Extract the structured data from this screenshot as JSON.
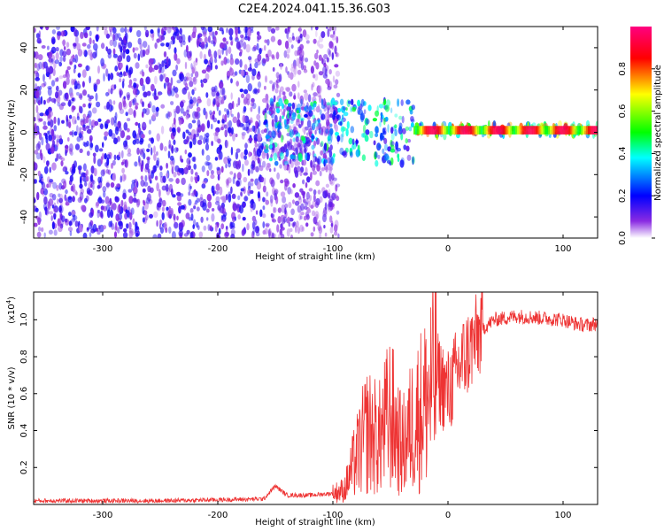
{
  "title": "C2E4.2024.041.15.36.G03",
  "chart_data": [
    {
      "type": "heatmap",
      "name": "spectrogram",
      "xlabel": "Height of straight line (km)",
      "ylabel": "Frequency (Hz)",
      "xlim": [
        -360,
        130
      ],
      "ylim": [
        -50,
        50
      ],
      "xticks": [
        -300,
        -200,
        -100,
        0,
        100
      ],
      "yticks": [
        -40,
        -20,
        0,
        20,
        40
      ],
      "xtick_labels": [
        "-300",
        "-200",
        "-100",
        "0",
        "100"
      ],
      "ytick_labels": [
        "-40",
        "-20",
        "0",
        "20",
        "40"
      ],
      "colorbar": {
        "label": "Normalized spectral amplitude",
        "range": [
          0,
          1
        ],
        "ticks": [
          0.0,
          0.2,
          0.4,
          0.6,
          0.8
        ],
        "tick_labels": [
          "0.0",
          "0.2",
          "0.4",
          "0.6",
          "0.8"
        ],
        "colors": [
          "#ffffff",
          "#8a2be2",
          "#0000ff",
          "#00ffff",
          "#00ff00",
          "#ffff00",
          "#ff0000",
          "#ff0080"
        ]
      },
      "regions": [
        {
          "x_range": [
            -360,
            -160
          ],
          "freq_range": [
            -50,
            50
          ],
          "amplitude": 0.15
        },
        {
          "x_range": [
            -160,
            -95
          ],
          "freq_range": [
            -50,
            50
          ],
          "amplitude": 0.1
        },
        {
          "x_range": [
            -160,
            -30
          ],
          "freq_range": [
            -15,
            15
          ],
          "amplitude": 0.35
        },
        {
          "x_range": [
            -30,
            130
          ],
          "freq_range": [
            -2,
            4
          ],
          "amplitude": 0.6
        }
      ]
    },
    {
      "type": "line",
      "name": "snr",
      "xlabel": "Height of straight line (km)",
      "ylabel": "SNR (10 * v/v)",
      "y_multiplier_label": "(x10",
      "y_multiplier_exp": "4",
      "xlim": [
        -360,
        130
      ],
      "ylim": [
        0,
        1.15
      ],
      "xticks": [
        -300,
        -200,
        -100,
        0,
        100
      ],
      "yticks": [
        0.2,
        0.4,
        0.6,
        0.8,
        1.0
      ],
      "xtick_labels": [
        "-300",
        "-200",
        "-100",
        "0",
        "100"
      ],
      "ytick_labels": [
        "0.2",
        "0.4",
        "0.6",
        "0.8",
        "1.0"
      ],
      "color": "#ee3333",
      "series": [
        {
          "name": "SNR",
          "x": [
            -360,
            -300,
            -250,
            -200,
            -160,
            -150,
            -140,
            -120,
            -100,
            -90,
            -80,
            -70,
            -60,
            -50,
            -40,
            -30,
            -20,
            -10,
            0,
            10,
            20,
            30,
            40,
            60,
            80,
            100,
            110,
            120,
            130
          ],
          "y": [
            0.02,
            0.02,
            0.02,
            0.025,
            0.03,
            0.1,
            0.05,
            0.05,
            0.06,
            0.08,
            0.25,
            0.4,
            0.35,
            0.5,
            0.3,
            0.45,
            0.55,
            0.7,
            0.6,
            0.75,
            0.85,
            0.95,
            1.0,
            1.02,
            1.01,
            1.0,
            0.98,
            0.97,
            0.98
          ]
        }
      ]
    }
  ]
}
